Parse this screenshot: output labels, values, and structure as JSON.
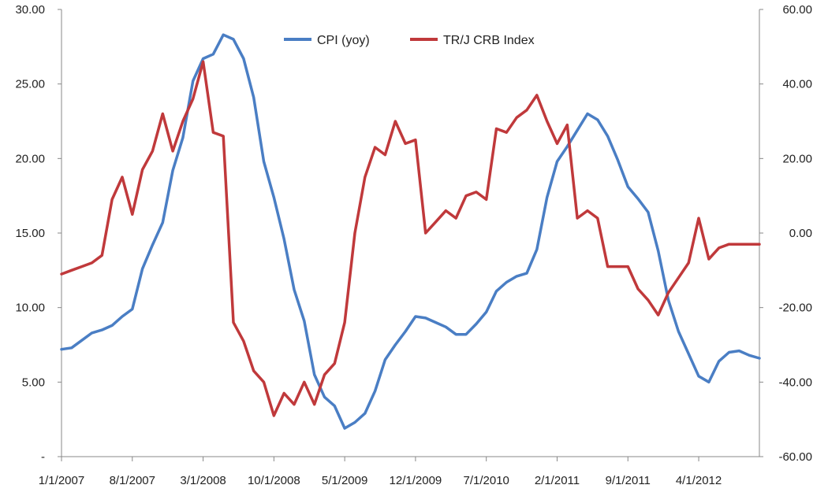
{
  "chart_data": {
    "type": "line",
    "title": "",
    "xlabel": "",
    "ylabel": "",
    "legend_placement": "top-center",
    "grid": false,
    "x_tick_labels": [
      "1/1/2007",
      "8/1/2007",
      "3/1/2008",
      "10/1/2008",
      "5/1/2009",
      "12/1/2009",
      "7/1/2010",
      "2/1/2011",
      "9/1/2011",
      "4/1/2012"
    ],
    "x_range": [
      "1/1/2007",
      "10/1/2012"
    ],
    "y_left": {
      "range": [
        0,
        30
      ],
      "tick_values": [
        0,
        5,
        10,
        15,
        20,
        25,
        30
      ],
      "tick_labels": [
        "-",
        "5.00",
        "10.00",
        "15.00",
        "20.00",
        "25.00",
        "30.00"
      ]
    },
    "y_right": {
      "range": [
        -60,
        60
      ],
      "tick_values": [
        -60,
        -40,
        -20,
        0,
        20,
        40,
        60
      ],
      "tick_labels": [
        "-60.00",
        "-40.00",
        "-20.00",
        "0.00",
        "20.00",
        "40.00",
        "60.00"
      ]
    },
    "x": [
      "2007-01",
      "2007-02",
      "2007-03",
      "2007-04",
      "2007-05",
      "2007-06",
      "2007-07",
      "2007-08",
      "2007-09",
      "2007-10",
      "2007-11",
      "2007-12",
      "2008-01",
      "2008-02",
      "2008-03",
      "2008-04",
      "2008-05",
      "2008-06",
      "2008-07",
      "2008-08",
      "2008-09",
      "2008-10",
      "2008-11",
      "2008-12",
      "2009-01",
      "2009-02",
      "2009-03",
      "2009-04",
      "2009-05",
      "2009-06",
      "2009-07",
      "2009-08",
      "2009-09",
      "2009-10",
      "2009-11",
      "2009-12",
      "2010-01",
      "2010-02",
      "2010-03",
      "2010-04",
      "2010-05",
      "2010-06",
      "2010-07",
      "2010-08",
      "2010-09",
      "2010-10",
      "2010-11",
      "2010-12",
      "2011-01",
      "2011-02",
      "2011-03",
      "2011-04",
      "2011-05",
      "2011-06",
      "2011-07",
      "2011-08",
      "2011-09",
      "2011-10",
      "2011-11",
      "2011-12",
      "2012-01",
      "2012-02",
      "2012-03",
      "2012-04",
      "2012-05",
      "2012-06",
      "2012-07",
      "2012-08",
      "2012-09",
      "2012-10"
    ],
    "series": [
      {
        "name": "CPI (yoy)",
        "axis": "left",
        "color": "#4a7ec4",
        "values": [
          7.2,
          7.3,
          7.8,
          8.3,
          8.5,
          8.8,
          9.4,
          9.9,
          12.6,
          14.2,
          15.7,
          19.2,
          21.4,
          25.2,
          26.7,
          27.0,
          28.3,
          28.0,
          26.7,
          24.1,
          19.8,
          17.4,
          14.6,
          11.2,
          9.1,
          5.5,
          4.0,
          3.4,
          1.9,
          2.3,
          2.9,
          4.4,
          6.5,
          7.5,
          8.4,
          9.4,
          9.3,
          9.0,
          8.7,
          8.2,
          8.2,
          8.9,
          9.7,
          11.1,
          11.7,
          12.1,
          12.3,
          13.9,
          17.4,
          19.8,
          20.8,
          21.9,
          23.0,
          22.6,
          21.5,
          19.9,
          18.1,
          17.3,
          16.4,
          13.8,
          10.5,
          8.4,
          6.9,
          5.4,
          5.0,
          6.4,
          7.0,
          7.1,
          6.8,
          6.6
        ]
      },
      {
        "name": "TR/J CRB Index",
        "axis": "right",
        "color": "#c0393b",
        "values": [
          -11,
          -10,
          -9,
          -8,
          -6,
          9,
          15,
          5,
          17,
          22,
          32,
          22,
          30,
          36,
          46,
          27,
          26,
          -24,
          -29,
          -37,
          -40,
          -49,
          -43,
          -46,
          -40,
          -46,
          -38,
          -35,
          -24,
          0,
          15,
          23,
          21,
          30,
          24,
          25,
          0,
          3,
          6,
          4,
          10,
          11,
          9,
          28,
          27,
          31,
          33,
          37,
          30,
          24,
          29,
          4,
          6,
          4,
          -9,
          -9,
          -9,
          -15,
          -18,
          -22,
          -16,
          -12,
          -8,
          4,
          -7,
          -4,
          -3,
          -3,
          -3,
          -3
        ]
      }
    ]
  }
}
